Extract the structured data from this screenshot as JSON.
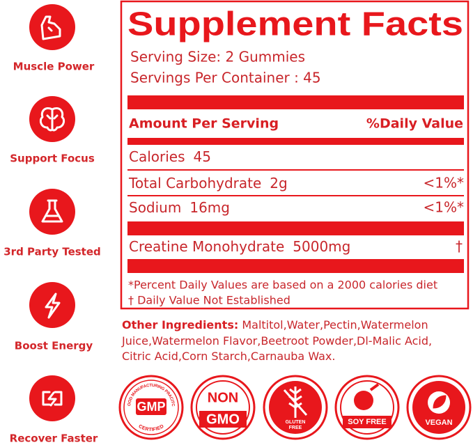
{
  "features": [
    {
      "label": "Muscle Power"
    },
    {
      "label": "Support Focus"
    },
    {
      "label": "3rd Party Tested"
    },
    {
      "label": "Boost Energy"
    },
    {
      "label": "Recover Faster"
    }
  ],
  "facts": {
    "title": "Supplement Facts",
    "serving_size": "Serving Size: 2 Gummies",
    "servings_per_container": "Servings Per Container : 45",
    "header": {
      "amount": "Amount Per Serving",
      "daily_value": "%Daily Value"
    },
    "rows": [
      {
        "name": "Calories",
        "amount": "45"
      },
      {
        "name": "Total Carbohydrate",
        "amount": "2g",
        "daily_value": "<1%*"
      },
      {
        "name": "Sodium",
        "amount": "16mg",
        "daily_value": "<1%*"
      },
      {
        "name": "Creatine Monohydrate",
        "amount": "5000mg",
        "daily_value": "†"
      }
    ],
    "footnotes": [
      "*Percent Daily Values are based on a 2000 calories diet",
      "† Daily Value Not Established"
    ]
  },
  "other_ingredients": {
    "label": "Other Ingredients:",
    "text": "Maltitol,Water,Pectin,Watermelon Juice,Watermelon Flavor,Beetroot Powder,Dl-Malic Acid, Citric Acid,Corn Starch,Carnauba Wax."
  },
  "badges": [
    {
      "lines": [
        "GMP"
      ],
      "arc_top": "GOOD MANUFACTURING PRACITCE",
      "arc_bottom": "CERTIFIED"
    },
    {
      "lines": [
        "NON",
        "GMO"
      ]
    },
    {
      "lines": [
        "GLUTEN",
        "FREE"
      ]
    },
    {
      "lines": [
        "SOY FREE"
      ]
    },
    {
      "lines": [
        "VEGAN"
      ]
    }
  ]
}
